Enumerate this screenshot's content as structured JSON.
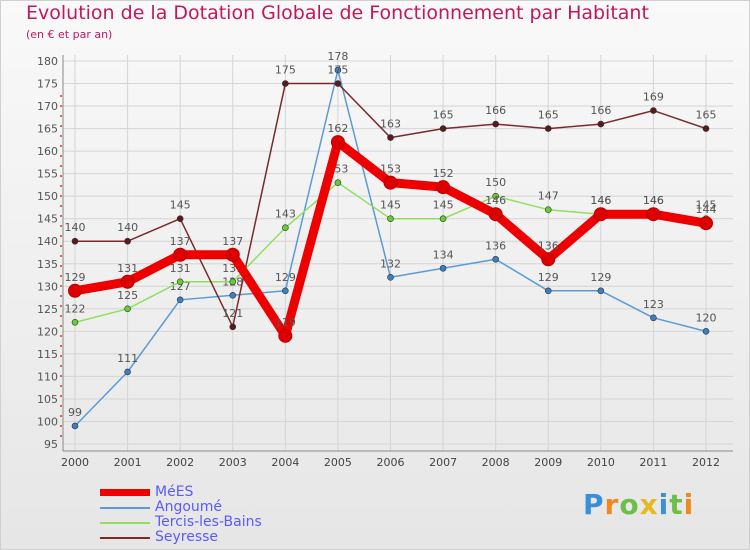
{
  "chart_data": {
    "type": "line",
    "title": "Evolution de la Dotation Globale de Fonctionnement par Habitant",
    "subtitle": "(en € et par an)",
    "categories": [
      "2000",
      "2001",
      "2002",
      "2003",
      "2004",
      "2005",
      "2006",
      "2007",
      "2008",
      "2009",
      "2010",
      "2011",
      "2012"
    ],
    "ylim": [
      95,
      180
    ],
    "yticks": [
      95,
      100,
      105,
      110,
      115,
      120,
      125,
      130,
      135,
      140,
      145,
      150,
      155,
      160,
      165,
      170,
      175,
      180
    ],
    "grid": true,
    "legend_position": "bottom-left",
    "series": [
      {
        "name": "MéES",
        "color": "#ee0000",
        "marker_color": "#dd0000",
        "thick": true,
        "values": [
          129,
          131,
          137,
          137,
          119,
          162,
          153,
          152,
          146,
          136,
          146,
          146,
          144
        ]
      },
      {
        "name": "Angoumé",
        "color": "#5b9bd5",
        "marker_color": "#3a7fc4",
        "thick": false,
        "values": [
          99,
          111,
          127,
          128,
          129,
          178,
          132,
          134,
          136,
          129,
          129,
          123,
          120
        ]
      },
      {
        "name": "Tercis-les-Bains",
        "color": "#90e060",
        "marker_color": "#66cc33",
        "thick": false,
        "values": [
          122,
          125,
          131,
          131,
          143,
          153,
          145,
          145,
          150,
          147,
          146,
          146,
          145
        ]
      },
      {
        "name": "Seyresse",
        "color": "#7a2a2a",
        "marker_color": "#5a1a1a",
        "thick": false,
        "values": [
          140,
          140,
          145,
          121,
          175,
          175,
          163,
          165,
          166,
          165,
          166,
          169,
          165
        ]
      }
    ]
  },
  "logo": {
    "text": "Proxiti",
    "letters": [
      "P",
      "r",
      "o",
      "x",
      "i",
      "t",
      "i"
    ],
    "colors": [
      "#3a8fd8",
      "#f08a1c",
      "#6cc04a",
      "#e8b820",
      "#3a8fd8",
      "#6cc04a",
      "#f08a1c"
    ]
  }
}
